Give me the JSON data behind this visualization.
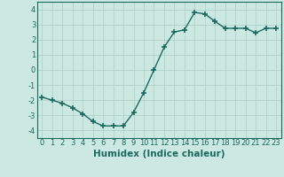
{
  "x": [
    0,
    1,
    2,
    3,
    4,
    5,
    6,
    7,
    8,
    9,
    10,
    11,
    12,
    13,
    14,
    15,
    16,
    17,
    18,
    19,
    20,
    21,
    22,
    23
  ],
  "y": [
    -1.8,
    -2.0,
    -2.2,
    -2.5,
    -2.9,
    -3.4,
    -3.7,
    -3.7,
    -3.7,
    -2.8,
    -1.5,
    0.0,
    1.5,
    2.5,
    2.65,
    3.8,
    3.7,
    3.2,
    2.75,
    2.75,
    2.75,
    2.45,
    2.75,
    2.75
  ],
  "xlabel": "Humidex (Indice chaleur)",
  "ylim": [
    -4.5,
    4.5
  ],
  "xlim": [
    -0.5,
    23.5
  ],
  "yticks": [
    -4,
    -3,
    -2,
    -1,
    0,
    1,
    2,
    3,
    4
  ],
  "xticks": [
    0,
    1,
    2,
    3,
    4,
    5,
    6,
    7,
    8,
    9,
    10,
    11,
    12,
    13,
    14,
    15,
    16,
    17,
    18,
    19,
    20,
    21,
    22,
    23
  ],
  "line_color": "#1a6b5e",
  "marker": "+",
  "marker_size": 4,
  "marker_lw": 1.2,
  "line_width": 1.0,
  "bg_color": "#cce8e3",
  "grid_color": "#aaccc6",
  "tick_label_fontsize": 6,
  "xlabel_fontsize": 7.5
}
